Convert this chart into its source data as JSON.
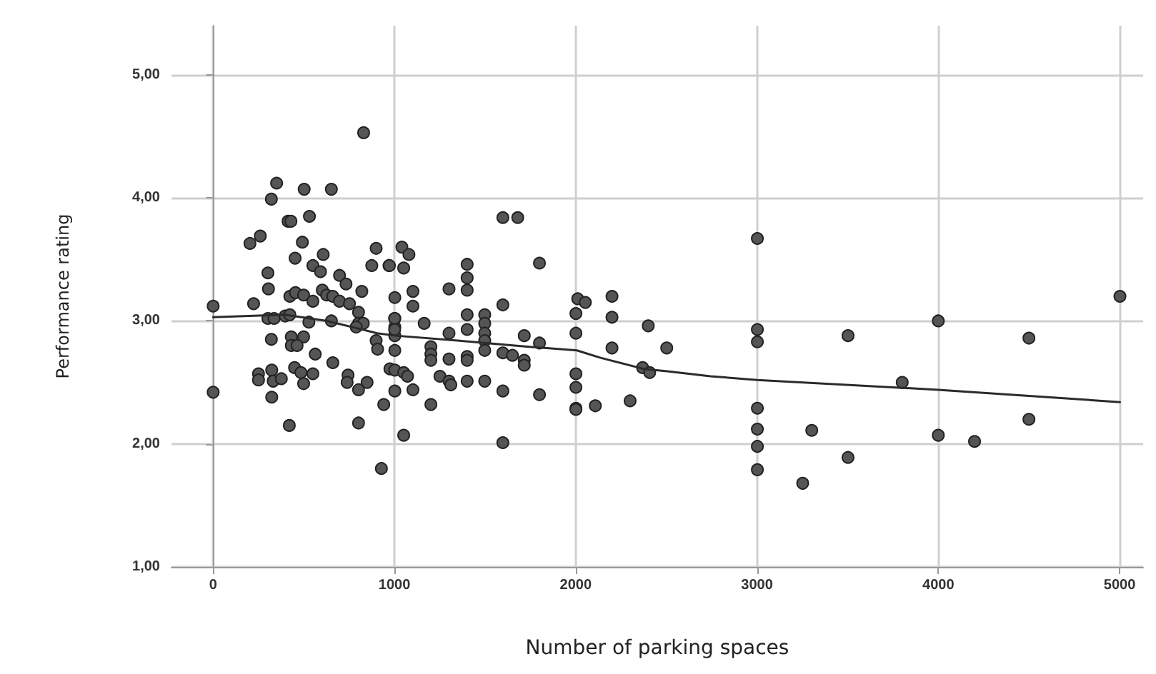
{
  "chart_data": {
    "type": "scatter",
    "xlabel": "Number of parking spaces",
    "ylabel": "Performance rating",
    "xlim": [
      -230,
      5130
    ],
    "ylim": [
      1,
      5.4
    ],
    "xticks": [
      0,
      1000,
      2000,
      3000,
      4000,
      5000
    ],
    "yticks": [
      {
        "value": 1,
        "label": "1,00"
      },
      {
        "value": 2,
        "label": "2,00"
      },
      {
        "value": 3,
        "label": "3,00"
      },
      {
        "value": 4,
        "label": "4,00"
      },
      {
        "value": 5,
        "label": "5,00"
      }
    ],
    "grid": true,
    "marker": "circle",
    "series": [
      {
        "color": "#555555",
        "x": [
          830,
          350,
          502,
          652,
          321,
          413,
          429,
          531,
          203,
          260,
          492,
          452,
          607,
          302,
          550,
          592,
          697,
          733,
          899,
          875,
          970,
          305,
          223,
          0,
          423,
          454,
          499,
          550,
          602,
          626,
          660,
          697,
          752,
          820,
          802,
          302,
          336,
          397,
          423,
          528,
          652,
          802,
          828,
          789,
          1002,
          1002,
          1002,
          1002,
          321,
          431,
          499,
          431,
          463,
          563,
          660,
          899,
          907,
          1002,
          250,
          250,
          323,
          331,
          376,
          449,
          484,
          499,
          550,
          744,
          739,
          849,
          802,
          975,
          1002,
          1002,
          323,
          0,
          941,
          420,
          802,
          928,
          1598,
          1680,
          1041,
          1080,
          972,
          1051,
          1800,
          1102,
          1102,
          1301,
          1401,
          1401,
          1401,
          1401,
          1401,
          1498,
          1498,
          1498,
          1498,
          1498,
          1598,
          2011,
          2053,
          2001,
          2001,
          1164,
          1001,
          1001,
          1301,
          1716,
          1800,
          1201,
          1201,
          1201,
          1301,
          1401,
          1401,
          1598,
          1651,
          1716,
          1716,
          1051,
          1072,
          1102,
          1251,
          1301,
          1311,
          1401,
          1498,
          1201,
          1598,
          1800,
          2001,
          2001,
          2001,
          2001,
          2108,
          1051,
          1598,
          2200,
          2200,
          2200,
          2400,
          2502,
          2369,
          2408,
          2300,
          3002,
          3002,
          3002,
          3002,
          3002,
          3002,
          3002,
          3302,
          3252,
          3502,
          3502,
          3801,
          4000,
          4000,
          4200,
          4500,
          4500,
          5002
        ],
        "values": [
          4.53,
          4.12,
          4.07,
          4.07,
          3.99,
          3.81,
          3.81,
          3.85,
          3.63,
          3.69,
          3.64,
          3.51,
          3.54,
          3.39,
          3.45,
          3.4,
          3.37,
          3.3,
          3.59,
          3.45,
          3.45,
          3.26,
          3.14,
          3.12,
          3.2,
          3.23,
          3.21,
          3.16,
          3.25,
          3.21,
          3.2,
          3.16,
          3.14,
          3.24,
          3.07,
          3.02,
          3.02,
          3.04,
          3.05,
          2.99,
          3.0,
          2.98,
          2.98,
          2.95,
          3.19,
          3.02,
          2.95,
          2.88,
          2.85,
          2.87,
          2.87,
          2.8,
          2.8,
          2.73,
          2.66,
          2.84,
          2.77,
          2.76,
          2.57,
          2.52,
          2.6,
          2.51,
          2.53,
          2.62,
          2.58,
          2.49,
          2.57,
          2.56,
          2.5,
          2.5,
          2.44,
          2.61,
          2.6,
          2.43,
          2.38,
          2.42,
          2.32,
          2.15,
          2.17,
          1.8,
          3.84,
          3.84,
          3.6,
          3.54,
          3.45,
          3.43,
          3.47,
          3.24,
          3.12,
          3.26,
          3.46,
          3.35,
          3.25,
          3.05,
          2.93,
          3.05,
          2.98,
          2.9,
          2.84,
          2.76,
          3.13,
          3.18,
          3.15,
          3.06,
          2.9,
          2.98,
          3.02,
          2.93,
          2.9,
          2.88,
          2.82,
          2.79,
          2.73,
          2.68,
          2.69,
          2.71,
          2.68,
          2.74,
          2.72,
          2.68,
          2.64,
          2.58,
          2.55,
          2.44,
          2.55,
          2.51,
          2.48,
          2.51,
          2.51,
          2.32,
          2.43,
          2.4,
          2.57,
          2.46,
          2.29,
          2.28,
          2.31,
          2.07,
          2.01,
          3.2,
          3.03,
          2.78,
          2.96,
          2.78,
          2.62,
          2.58,
          2.35,
          3.67,
          2.93,
          2.83,
          2.29,
          2.12,
          1.98,
          1.79,
          2.11,
          1.68,
          2.88,
          1.89,
          2.5,
          3.0,
          2.07,
          2.02,
          2.86,
          2.2,
          3.2
        ]
      },
      {
        "type": "line",
        "marker": "none",
        "color": "#2b2b2b",
        "x": [
          0,
          394,
          628,
          904,
          1007,
          1348,
          1743,
          2006,
          2137,
          2374,
          2505,
          2743,
          3002,
          4000,
          5002
        ],
        "values": [
          3.03,
          3.05,
          3.0,
          2.9,
          2.88,
          2.84,
          2.79,
          2.76,
          2.7,
          2.61,
          2.59,
          2.55,
          2.52,
          2.44,
          2.34
        ]
      }
    ]
  }
}
